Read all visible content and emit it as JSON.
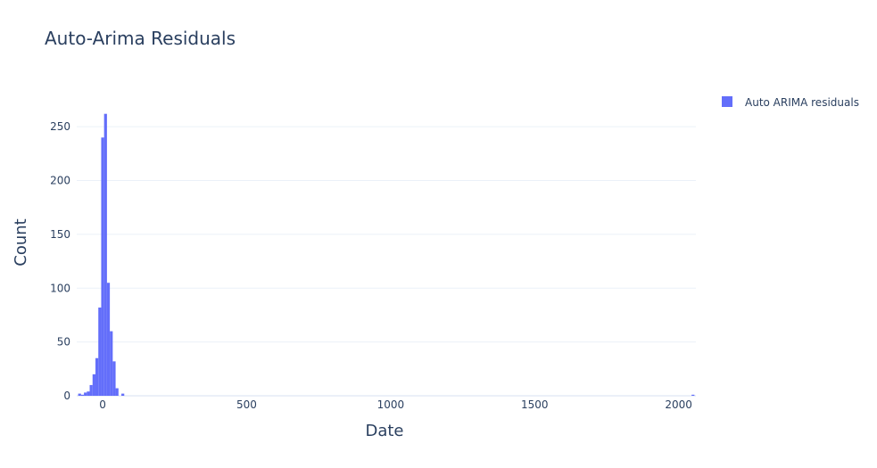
{
  "chart_data": {
    "type": "bar",
    "title": "Auto-Arima Residuals",
    "xlabel": "Date",
    "ylabel": "Count",
    "xlim": [
      -90,
      2060
    ],
    "ylim": [
      0,
      275
    ],
    "x_ticks": [
      0,
      500,
      1000,
      1500,
      2000
    ],
    "y_ticks": [
      0,
      50,
      100,
      150,
      200,
      250
    ],
    "legend_position": "top-right",
    "grid": true,
    "bar_color": "#636efa",
    "series": [
      {
        "name": "Auto ARIMA residuals",
        "bins": [
          {
            "x0": -85,
            "x1": -75,
            "count": 2
          },
          {
            "x0": -75,
            "x1": -65,
            "count": 1
          },
          {
            "x0": -65,
            "x1": -55,
            "count": 3
          },
          {
            "x0": -55,
            "x1": -45,
            "count": 4
          },
          {
            "x0": -45,
            "x1": -35,
            "count": 10
          },
          {
            "x0": -35,
            "x1": -25,
            "count": 20
          },
          {
            "x0": -25,
            "x1": -15,
            "count": 35
          },
          {
            "x0": -15,
            "x1": -5,
            "count": 82
          },
          {
            "x0": -5,
            "x1": 5,
            "count": 240
          },
          {
            "x0": 5,
            "x1": 15,
            "count": 262
          },
          {
            "x0": 15,
            "x1": 25,
            "count": 105
          },
          {
            "x0": 25,
            "x1": 35,
            "count": 60
          },
          {
            "x0": 35,
            "x1": 45,
            "count": 32
          },
          {
            "x0": 45,
            "x1": 55,
            "count": 7
          },
          {
            "x0": 55,
            "x1": 65,
            "count": 0
          },
          {
            "x0": 65,
            "x1": 75,
            "count": 2
          },
          {
            "x0": 2045,
            "x1": 2055,
            "count": 1
          }
        ]
      }
    ]
  }
}
